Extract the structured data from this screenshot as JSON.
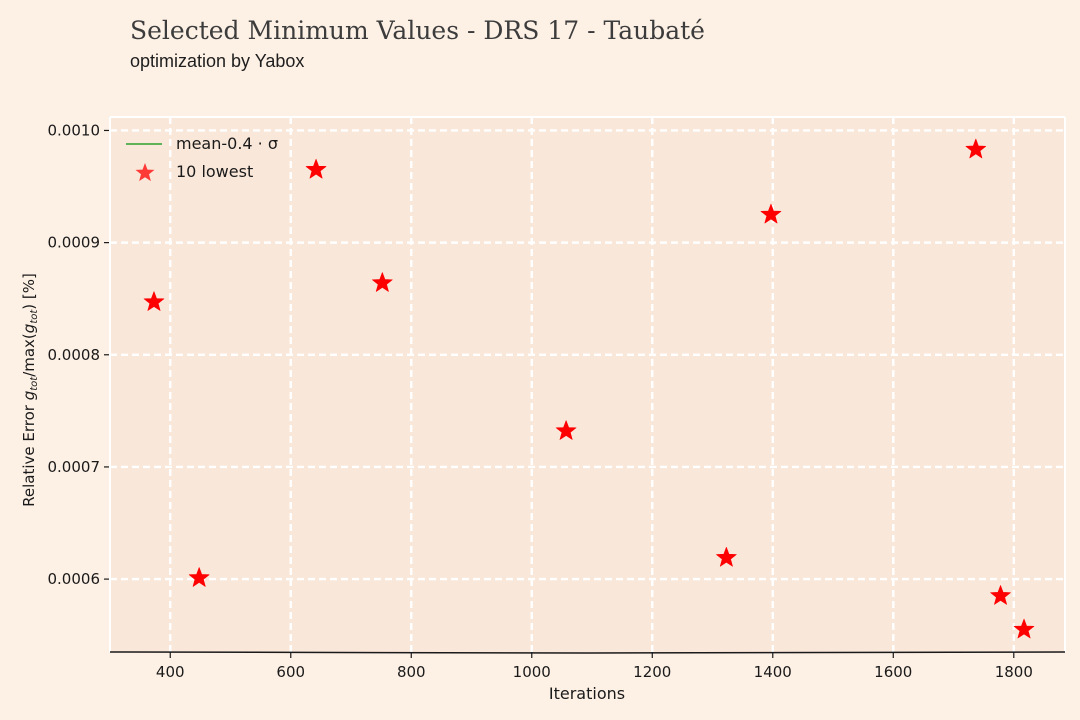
{
  "header": {
    "title": "Selected Minimum Values - DRS 17 - Taubaté",
    "subtitle": "optimization by Yabox"
  },
  "colors": {
    "background": "#fdf0e5",
    "plot_background": "#f9e7da",
    "grid": "#ffffff",
    "marker": "#ff0000",
    "mean_line": "#2ca02c",
    "text": "#1a1a1a"
  },
  "chart_data": {
    "type": "scatter",
    "title": "Selected Minimum Values - DRS 17 - Taubaté",
    "subtitle": "optimization by Yabox",
    "xlabel": "Iterations",
    "ylabel_parts": {
      "prefix": "Relative Error ",
      "g1": "g",
      "sub1": "tot",
      "mid": "/max(",
      "g2": "g",
      "sub2": "tot",
      "suffix": ") [%]"
    },
    "xlim": [
      300,
      1885
    ],
    "ylim": [
      0.000535,
      0.001012
    ],
    "xticks": [
      400,
      600,
      800,
      1000,
      1200,
      1400,
      1600,
      1800
    ],
    "yticks": [
      0.0006,
      0.0007,
      0.0008,
      0.0009,
      0.001
    ],
    "ytick_labels": [
      "0.0006",
      "0.0007",
      "0.0008",
      "0.0009",
      "0.0010"
    ],
    "grid": true,
    "legend": {
      "placement": "top-left",
      "entries": [
        "mean-0.4 · σ",
        "10 lowest"
      ]
    },
    "series": [
      {
        "name": "10 lowest",
        "marker": "star",
        "points": [
          {
            "x": 373,
            "y": 0.000847
          },
          {
            "x": 448,
            "y": 0.000601
          },
          {
            "x": 642,
            "y": 0.000965
          },
          {
            "x": 752,
            "y": 0.000864
          },
          {
            "x": 1057,
            "y": 0.000732
          },
          {
            "x": 1323,
            "y": 0.000619
          },
          {
            "x": 1397,
            "y": 0.000925
          },
          {
            "x": 1737,
            "y": 0.000983
          },
          {
            "x": 1778,
            "y": 0.000585
          },
          {
            "x": 1817,
            "y": 0.000555
          }
        ]
      }
    ]
  }
}
